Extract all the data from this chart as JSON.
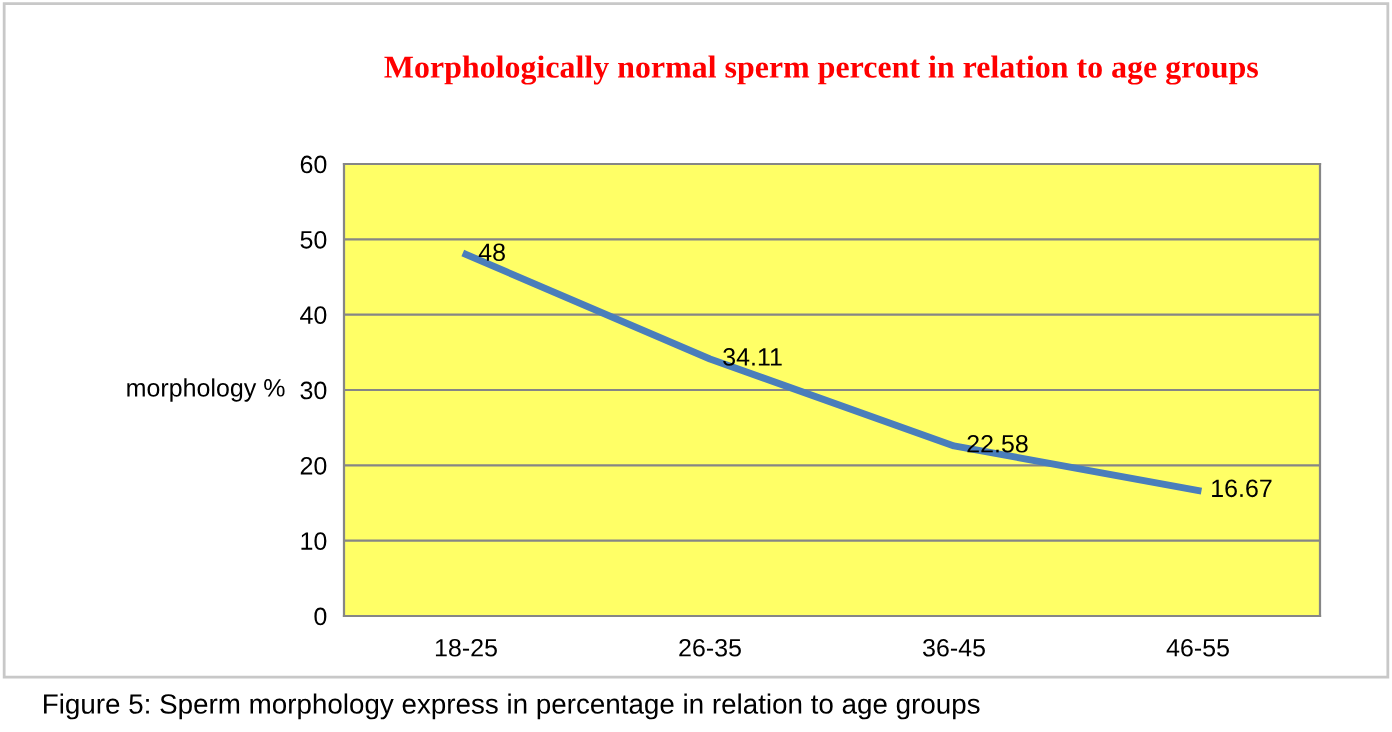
{
  "chart_data": {
    "type": "line",
    "title": "Morphologically normal sperm percent in relation to age groups",
    "ylabel": "morphology %",
    "categories": [
      "18-25",
      "26-35",
      "36-45",
      "46-55"
    ],
    "series": [
      {
        "color": "#4a7ebb",
        "values": [
          48,
          34.11,
          22.58,
          16.67
        ]
      }
    ],
    "ylim": [
      0,
      60
    ],
    "yticks": [
      0,
      10,
      20,
      30,
      40,
      50,
      60
    ],
    "grid": "y",
    "legend": false,
    "data_labels": true,
    "marker": "none",
    "line_style": "solid",
    "annotations": [
      "Figure 5: Sperm morphology express in percentage in relation to age groups"
    ]
  }
}
